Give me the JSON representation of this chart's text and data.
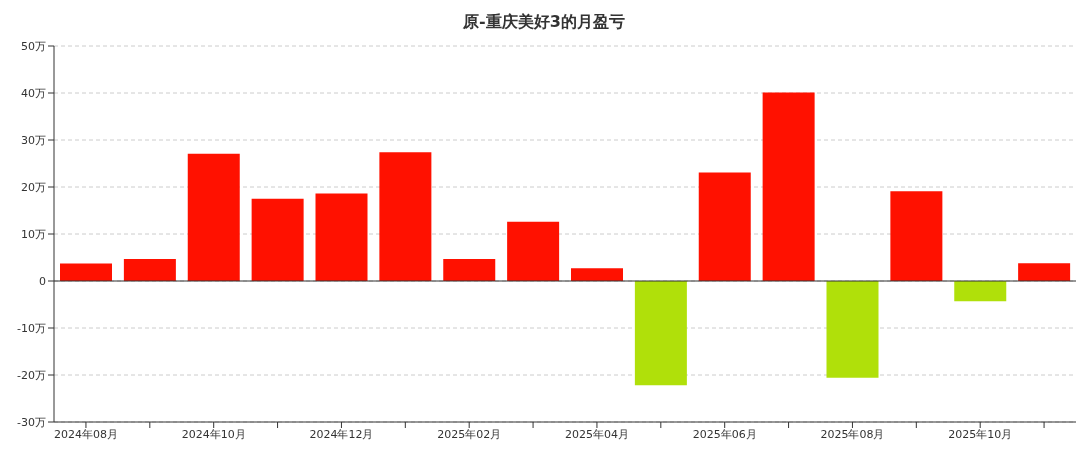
{
  "chart_data": {
    "type": "bar",
    "title": "原-重庆美好3的月盈亏",
    "categories": [
      "2024年08月",
      null,
      "2024年10月",
      null,
      "2024年12月",
      null,
      "2025年02月",
      null,
      "2025年04月",
      null,
      "2025年06月",
      null,
      "2025年08月",
      null,
      "2025年10月",
      null
    ],
    "values": [
      3.7,
      4.7,
      27.1,
      17.5,
      18.6,
      27.4,
      4.7,
      12.6,
      2.7,
      -22.2,
      23.1,
      40.1,
      -20.6,
      19.1,
      -4.3,
      3.8
    ],
    "colors": [
      "#ff1100",
      "#ff1100",
      "#ff1100",
      "#ff1100",
      "#ff1100",
      "#ff1100",
      "#ff1100",
      "#ff1100",
      "#ff1100",
      "#b0e00a",
      "#ff1100",
      "#ff1100",
      "#b0e00a",
      "#ff1100",
      "#b0e00a",
      "#ff1100"
    ],
    "ylim": [
      -30,
      50
    ],
    "yticks": [
      {
        "value": -30,
        "label": "-30万"
      },
      {
        "value": -20,
        "label": "-20万"
      },
      {
        "value": -10,
        "label": "-10万"
      },
      {
        "value": 0,
        "label": "0"
      },
      {
        "value": 10,
        "label": "10万"
      },
      {
        "value": 20,
        "label": "20万"
      },
      {
        "value": 30,
        "label": "30万"
      },
      {
        "value": 40,
        "label": "40万"
      },
      {
        "value": 50,
        "label": "50万"
      }
    ],
    "grid": "y"
  }
}
